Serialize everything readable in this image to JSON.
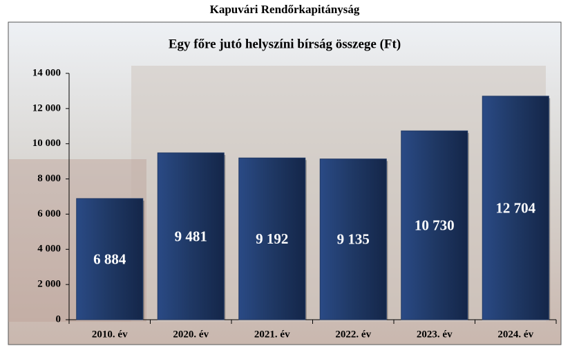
{
  "chart_data": {
    "type": "bar",
    "title": "Kapuvári Rendőrkapitányság",
    "subtitle": "Egy főre jutó helyszíni bírság összege (Ft)",
    "categories": [
      "2010. év",
      "2020. év",
      "2021. év",
      "2022. év",
      "2023. év",
      "2024. év"
    ],
    "values": [
      6884,
      9481,
      9192,
      9135,
      10730,
      12704
    ],
    "value_labels": [
      "6 884",
      "9 481",
      "9 192",
      "9 135",
      "10 730",
      "12 704"
    ],
    "color": "#1f3864",
    "ylim": [
      0,
      14000
    ],
    "yticks": [
      0,
      {
        "value": 2000,
        "label": "2 000"
      },
      {
        "value": 4000,
        "label": "4 000"
      },
      {
        "value": 6000,
        "label": "6 000"
      },
      {
        "value": 8000,
        "label": "8 000"
      },
      {
        "value": 10000,
        "label": "10 000"
      },
      {
        "value": 12000,
        "label": "12 000"
      },
      {
        "value": 14000,
        "label": "14 000"
      }
    ],
    "grid": false
  }
}
